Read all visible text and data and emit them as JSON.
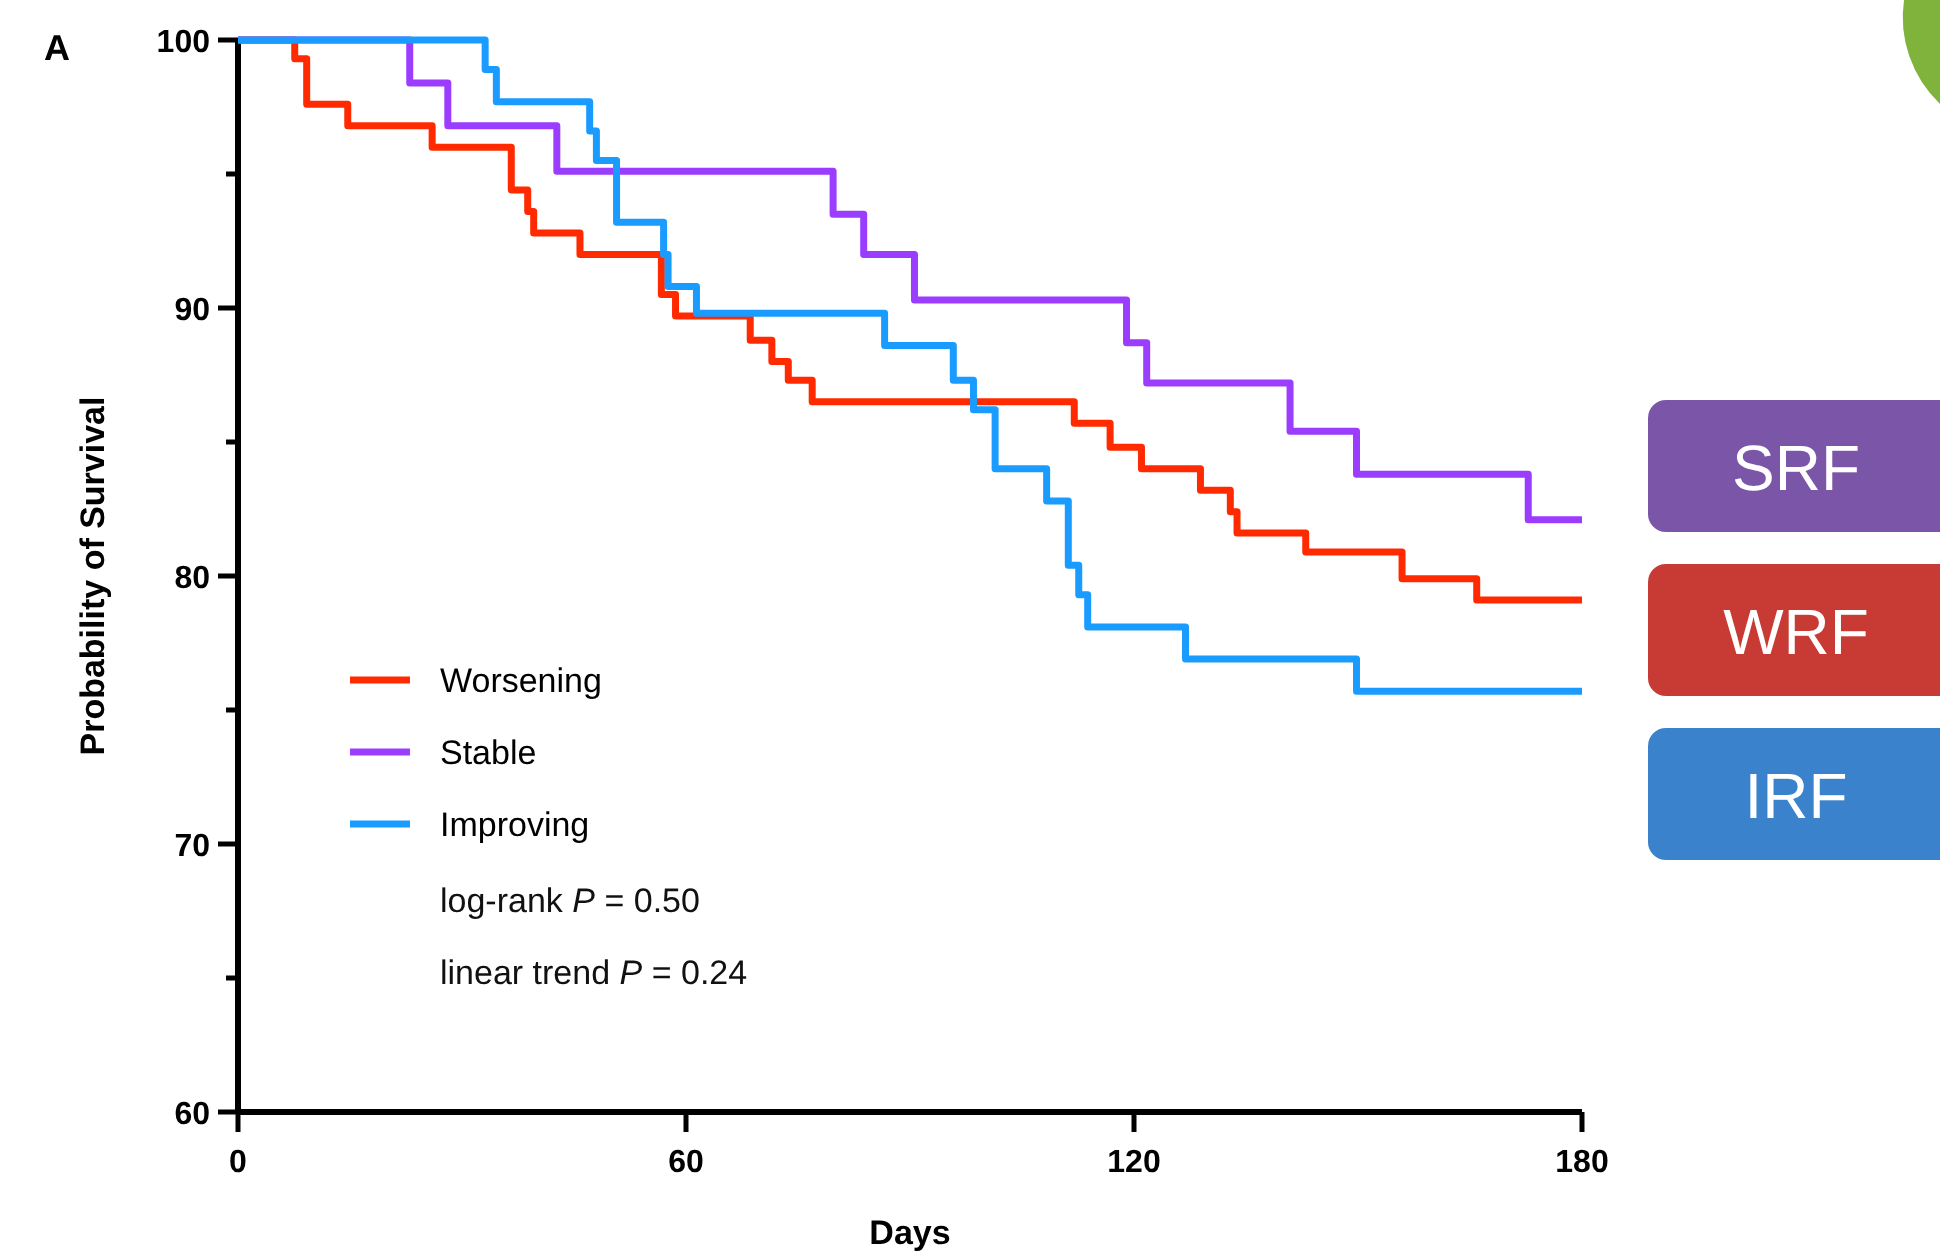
{
  "chart_data": {
    "type": "step",
    "xlabel": "Days",
    "ylabel": "Probability of Survival",
    "xlim": [
      0,
      180
    ],
    "xticks": [
      0,
      60,
      120,
      180
    ],
    "ylim": [
      60,
      100
    ],
    "yticks": [
      60,
      {
        "value": 65,
        "label": null
      },
      70,
      {
        "value": 75,
        "label": null
      },
      80,
      {
        "value": 85,
        "label": null
      },
      90,
      {
        "value": 95,
        "label": null
      },
      100
    ],
    "legend": "bottom left",
    "grid": false,
    "marker": "none",
    "line_style": "solid",
    "series": [
      {
        "name": "Worsening",
        "color": "#ff2a00",
        "x": [
          0,
          7.6,
          9.2,
          14.7,
          26,
          36.6,
          38.8,
          39.6,
          45.8,
          56.7,
          58.6,
          68.6,
          71.5,
          73.7,
          76.9,
          112,
          116.8,
          121,
          128.9,
          132.9,
          133.8,
          143,
          155.9,
          165.9,
          180
        ],
        "values": [
          100,
          99.3,
          97.6,
          96.8,
          96,
          94.4,
          93.6,
          92.8,
          92,
          90.5,
          89.7,
          88.8,
          88,
          87.3,
          86.5,
          85.7,
          84.8,
          84,
          83.2,
          82.4,
          81.6,
          80.9,
          79.9,
          79.1,
          79.1
        ]
      },
      {
        "name": "Stable",
        "color": "#9b3dff",
        "x": [
          0,
          23,
          28.1,
          42.7,
          79.7,
          83.8,
          90.6,
          119,
          121.7,
          140.9,
          149.8,
          172.8,
          180
        ],
        "values": [
          100,
          98.4,
          96.8,
          95.1,
          93.5,
          92,
          90.3,
          88.7,
          87.2,
          85.4,
          83.8,
          82.1,
          82.1
        ]
      },
      {
        "name": "Improving",
        "color": "#1a9bff",
        "x": [
          0,
          33.1,
          34.6,
          47.1,
          48,
          50.7,
          57,
          57.6,
          61.4,
          86.6,
          95.8,
          98.5,
          101.4,
          108.3,
          111.2,
          112.6,
          113.8,
          126.9,
          149.8,
          180
        ],
        "values": [
          100,
          98.9,
          97.7,
          96.6,
          95.5,
          93.2,
          92,
          90.8,
          89.8,
          88.6,
          87.3,
          86.2,
          84,
          82.8,
          80.4,
          79.3,
          78.1,
          76.9,
          75.7,
          75.7
        ]
      }
    ],
    "annotations": [
      "A",
      "log-rank P = 0.50",
      "linear trend P = 0.24",
      "SRF",
      "WRF",
      "IRF"
    ]
  }
}
